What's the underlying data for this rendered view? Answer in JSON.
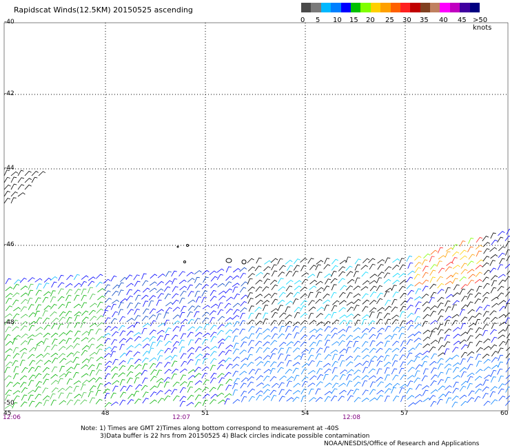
{
  "title": "Rapidscat Winds(12.5KM) 20150525 ascending",
  "colorbar": {
    "labels": [
      "0",
      "5",
      "10",
      "15",
      "20",
      "25",
      "30",
      "35",
      "40",
      "45",
      ">50 knots"
    ],
    "colors": [
      "#4a4a4a",
      "#7a7a7a",
      "#00b8ff",
      "#0080ff",
      "#0000ff",
      "#00c000",
      "#80ff00",
      "#ffd000",
      "#ffa000",
      "#ff6000",
      "#ff2020",
      "#c00000",
      "#804020",
      "#c08060",
      "#ff00ff",
      "#c000c0",
      "#4000a0",
      "#000080"
    ]
  },
  "axes": {
    "lat_labels": [
      "-40",
      "-42",
      "-44",
      "-46",
      "-48",
      "-50"
    ],
    "lon_labels": [
      "45",
      "48",
      "51",
      "54",
      "57",
      "60"
    ],
    "time_labels": [
      "12:06",
      "12:07",
      "12:08"
    ]
  },
  "notes": [
    "Note: 1) Times are GMT 2)Times along bottom correspond to measurement at -40S",
    "3)Data buffer is 22 hrs from 20150525 4) Black circles indicate possible contamination"
  ],
  "credit": "NOAA/NESDIS/Office of Research and Applications"
}
